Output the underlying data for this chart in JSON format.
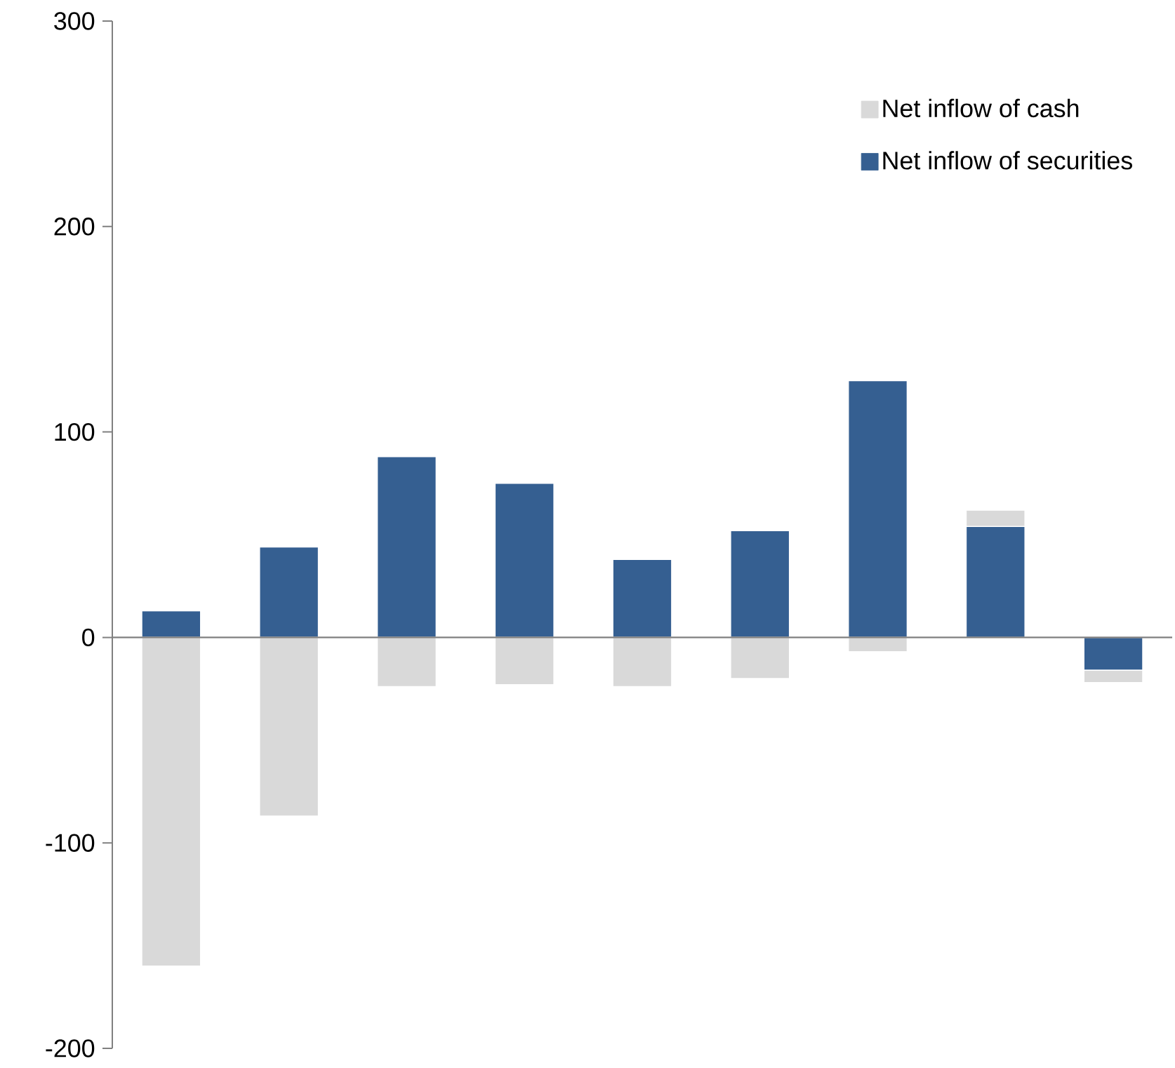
{
  "chart_data": {
    "type": "bar",
    "stacked": true,
    "categories": [
      null,
      null,
      null,
      null,
      null,
      null,
      null,
      null,
      null
    ],
    "series": [
      {
        "name": "Net inflow of securities",
        "color": "#355f91",
        "values": [
          13,
          44,
          88,
          75,
          38,
          52,
          125,
          54,
          -16
        ]
      },
      {
        "name": "Net inflow of cash",
        "color": "#d9d9d9",
        "values": [
          -160,
          -87,
          -24,
          -23,
          -24,
          -20,
          -7,
          8,
          -6
        ]
      }
    ],
    "ylim": [
      -200,
      300
    ],
    "yticks": [
      -200,
      -100,
      0,
      100,
      200,
      300
    ],
    "legend": "top right"
  }
}
